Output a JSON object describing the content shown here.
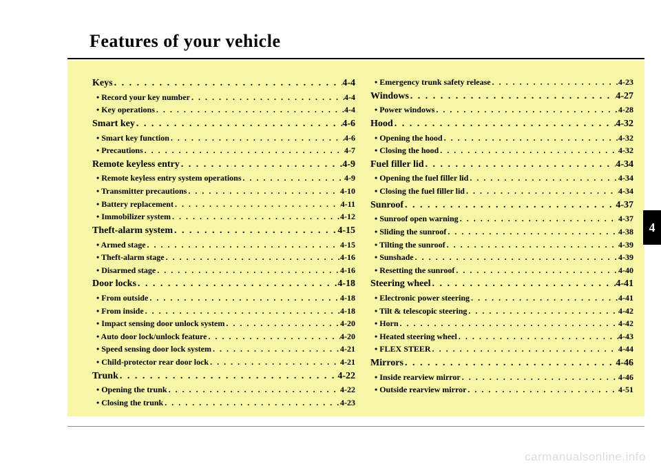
{
  "title": "Features of your vehicle",
  "tab": "4",
  "watermark": "carmanualsonline.info",
  "dots": ". . . . . . . . . . . . . . . . . . . . . . . . . . . . . . . . . . . . . . . . . . . . . . . . . . . . . . . . . . . .",
  "columns": [
    [
      {
        "lvl": 1,
        "label": "Keys",
        "page": "4-4"
      },
      {
        "lvl": 2,
        "label": "• Record your key number",
        "page": "4-4"
      },
      {
        "lvl": 2,
        "label": "• Key operations",
        "page": "4-4"
      },
      {
        "lvl": 1,
        "label": "Smart key",
        "page": "4-6"
      },
      {
        "lvl": 2,
        "label": "• Smart key function",
        "page": "4-6"
      },
      {
        "lvl": 2,
        "label": "• Precautions",
        "page": "4-7"
      },
      {
        "lvl": 1,
        "label": "Remote keyless entry",
        "page": "4-9"
      },
      {
        "lvl": 2,
        "label": "• Remote keyless entry system operations",
        "page": "4-9"
      },
      {
        "lvl": 2,
        "label": "• Transmitter precautions",
        "page": "4-10"
      },
      {
        "lvl": 2,
        "label": "• Battery replacement",
        "page": "4-11"
      },
      {
        "lvl": 2,
        "label": "• Immobilizer system",
        "page": "4-12"
      },
      {
        "lvl": 1,
        "label": "Theft-alarm system",
        "page": "4-15"
      },
      {
        "lvl": 2,
        "label": "• Armed stage",
        "page": "4-15"
      },
      {
        "lvl": 2,
        "label": "• Theft-alarm stage",
        "page": "4-16"
      },
      {
        "lvl": 2,
        "label": "• Disarmed stage",
        "page": "4-16"
      },
      {
        "lvl": 1,
        "label": "Door locks",
        "page": "4-18"
      },
      {
        "lvl": 2,
        "label": "• From outside",
        "page": "4-18"
      },
      {
        "lvl": 2,
        "label": "• From inside",
        "page": "4-18"
      },
      {
        "lvl": 2,
        "label": "• Impact sensing door unlock system",
        "page": "4-20"
      },
      {
        "lvl": 2,
        "label": "• Auto door lock/unlock feature",
        "page": "4-20"
      },
      {
        "lvl": 2,
        "label": "• Speed sensing door lock system",
        "page": "4-21"
      },
      {
        "lvl": 2,
        "label": "• Child-protector rear door lock",
        "page": "4-21"
      },
      {
        "lvl": 1,
        "label": "Trunk",
        "page": "4-22"
      },
      {
        "lvl": 2,
        "label": "• Opening the trunk",
        "page": "4-22"
      },
      {
        "lvl": 2,
        "label": "• Closing the trunk",
        "page": "4-23"
      }
    ],
    [
      {
        "lvl": 2,
        "label": "• Emergency trunk safety release",
        "page": "4-23"
      },
      {
        "lvl": 1,
        "label": "Windows",
        "page": "4-27"
      },
      {
        "lvl": 2,
        "label": "• Power windows",
        "page": "4-28"
      },
      {
        "lvl": 1,
        "label": "Hood",
        "page": "4-32"
      },
      {
        "lvl": 2,
        "label": "• Opening the hood",
        "page": "4-32"
      },
      {
        "lvl": 2,
        "label": "• Closing the hood",
        "page": "4-32"
      },
      {
        "lvl": 1,
        "label": "Fuel filler lid",
        "page": "4-34"
      },
      {
        "lvl": 2,
        "label": "• Opening the fuel filler lid",
        "page": "4-34"
      },
      {
        "lvl": 2,
        "label": "• Closing the fuel filler lid",
        "page": "4-34"
      },
      {
        "lvl": 1,
        "label": "Sunroof",
        "page": "4-37"
      },
      {
        "lvl": 2,
        "label": "• Sunroof open warning",
        "page": "4-37"
      },
      {
        "lvl": 2,
        "label": "• Sliding the sunroof",
        "page": "4-38"
      },
      {
        "lvl": 2,
        "label": "• Tilting the sunroof",
        "page": "4-39"
      },
      {
        "lvl": 2,
        "label": "• Sunshade",
        "page": "4-39"
      },
      {
        "lvl": 2,
        "label": "• Resetting the sunroof",
        "page": "4-40"
      },
      {
        "lvl": 1,
        "label": "Steering wheel",
        "page": "4-41"
      },
      {
        "lvl": 2,
        "label": "• Electronic power steering",
        "page": "4-41"
      },
      {
        "lvl": 2,
        "label": "• Tilt & telescopic steering",
        "page": "4-42"
      },
      {
        "lvl": 2,
        "label": "• Horn",
        "page": "4-42"
      },
      {
        "lvl": 2,
        "label": "• Heated steering wheel",
        "page": "4-43"
      },
      {
        "lvl": 2,
        "label": "• FLEX STEER",
        "page": "4-44"
      },
      {
        "lvl": 1,
        "label": "Mirrors",
        "page": "4-46"
      },
      {
        "lvl": 2,
        "label": "• Inside rearview mirror",
        "page": "4-46"
      },
      {
        "lvl": 2,
        "label": "• Outside rearview mirror",
        "page": "4-51"
      }
    ]
  ]
}
